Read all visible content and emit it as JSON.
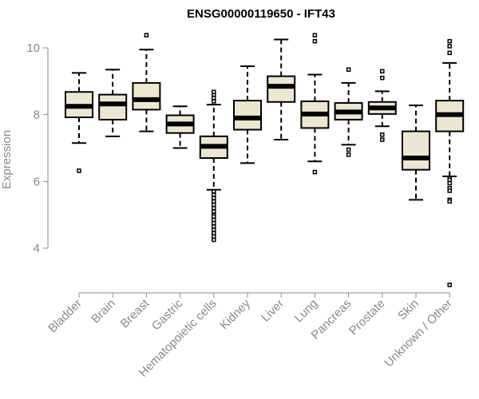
{
  "chart_data": {
    "type": "boxplot",
    "title": "ENSG00000119650 - IFT43",
    "xlabel": "",
    "ylabel": "Expression",
    "ylim": [
      2.8,
      10.6
    ],
    "yticks": [
      4,
      6,
      8,
      10
    ],
    "categories": [
      "Bladder",
      "Brain",
      "Breast",
      "Gastric",
      "Hematopoietic cells",
      "Kidney",
      "Liver",
      "Lung",
      "Pancreas",
      "Prostate",
      "Skin",
      "Unknown / Other"
    ],
    "boxes": [
      {
        "name": "Bladder",
        "whisker_low": 7.15,
        "q1": 7.92,
        "median": 8.25,
        "q3": 8.68,
        "whisker_high": 9.25,
        "outliers": [
          6.32
        ]
      },
      {
        "name": "Brain",
        "whisker_low": 7.35,
        "q1": 7.85,
        "median": 8.32,
        "q3": 8.6,
        "whisker_high": 9.35,
        "outliers": []
      },
      {
        "name": "Breast",
        "whisker_low": 7.5,
        "q1": 8.15,
        "median": 8.45,
        "q3": 8.95,
        "whisker_high": 9.95,
        "outliers": [
          10.38
        ]
      },
      {
        "name": "Gastric",
        "whisker_low": 7.0,
        "q1": 7.45,
        "median": 7.72,
        "q3": 7.98,
        "whisker_high": 8.25,
        "outliers": []
      },
      {
        "name": "Hematopoietic cells",
        "whisker_low": 5.75,
        "q1": 6.7,
        "median": 7.05,
        "q3": 7.35,
        "whisker_high": 8.3,
        "outliers": [
          8.4,
          8.5,
          8.6,
          8.68,
          5.7,
          5.6,
          5.5,
          5.4,
          5.3,
          5.2,
          5.1,
          5.0,
          4.95,
          4.85,
          4.75,
          4.65,
          4.55,
          4.45,
          4.35,
          4.25
        ]
      },
      {
        "name": "Kidney",
        "whisker_low": 6.55,
        "q1": 7.55,
        "median": 7.9,
        "q3": 8.42,
        "whisker_high": 9.45,
        "outliers": []
      },
      {
        "name": "Liver",
        "whisker_low": 7.25,
        "q1": 8.38,
        "median": 8.85,
        "q3": 9.15,
        "whisker_high": 10.25,
        "outliers": []
      },
      {
        "name": "Lung",
        "whisker_low": 6.6,
        "q1": 7.6,
        "median": 8.02,
        "q3": 8.4,
        "whisker_high": 9.2,
        "outliers": [
          10.38,
          10.2,
          6.28
        ]
      },
      {
        "name": "Pancreas",
        "whisker_low": 7.1,
        "q1": 7.85,
        "median": 8.08,
        "q3": 8.35,
        "whisker_high": 8.95,
        "outliers": [
          9.35,
          6.95,
          6.8
        ]
      },
      {
        "name": "Prostate",
        "whisker_low": 7.65,
        "q1": 8.02,
        "median": 8.2,
        "q3": 8.38,
        "whisker_high": 8.7,
        "outliers": [
          9.3,
          9.1,
          7.4,
          7.25
        ]
      },
      {
        "name": "Skin",
        "whisker_low": 5.45,
        "q1": 6.35,
        "median": 6.7,
        "q3": 7.5,
        "whisker_high": 8.28,
        "outliers": []
      },
      {
        "name": "Unknown / Other",
        "whisker_low": 6.15,
        "q1": 7.5,
        "median": 8.0,
        "q3": 8.42,
        "whisker_high": 9.55,
        "outliers": [
          10.2,
          10.05,
          9.85,
          6.1,
          6.05,
          5.95,
          5.8,
          5.72,
          5.45,
          5.4,
          2.9
        ]
      }
    ],
    "box_fill": "#ede7d0",
    "box_stroke": "#000000",
    "axis_color": "#888888"
  }
}
